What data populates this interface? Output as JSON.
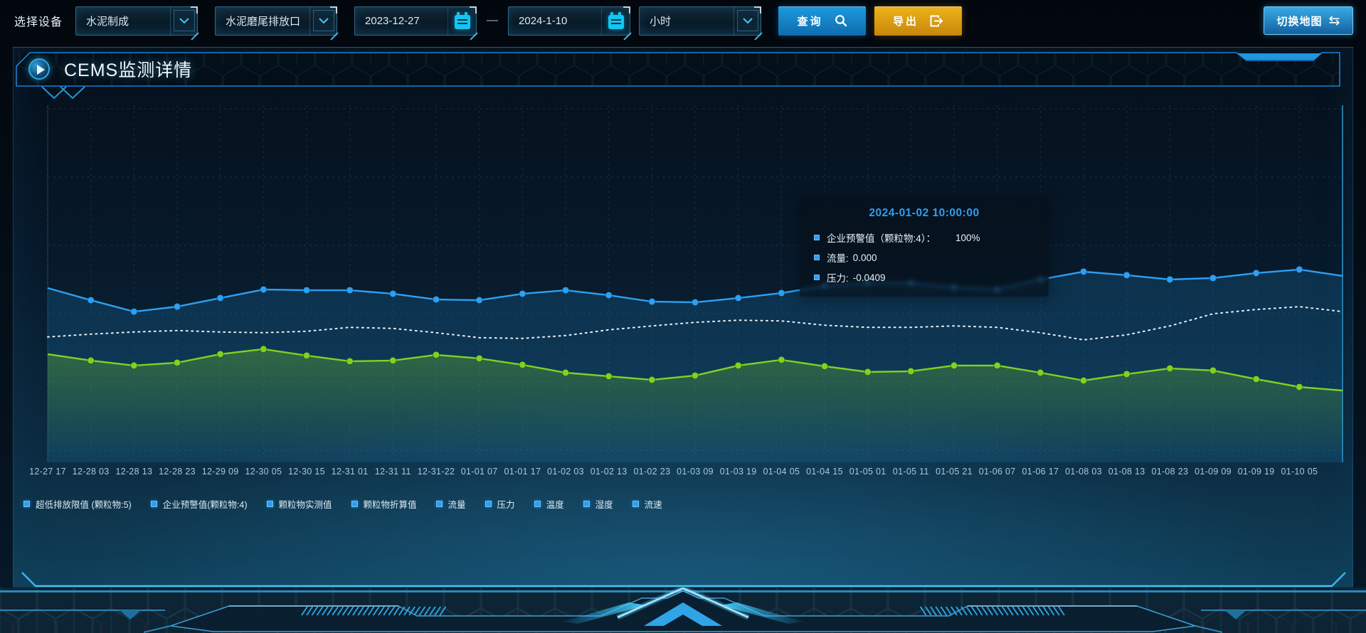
{
  "toolbar": {
    "device_label": "选择设备",
    "device_select": "水泥制成",
    "outlet_select": "水泥磨尾排放口",
    "date_start": "2023-12-27",
    "date_separator": "—",
    "date_end": "2024-1-10",
    "interval_select": "小时",
    "query_button": "查询",
    "export_button": "导出",
    "switch_map_button": "切换地图",
    "icons": [
      "chevron-down-icon",
      "calendar-icon",
      "search-icon",
      "export-icon",
      "swap-arrows-icon"
    ]
  },
  "panel": {
    "title": "CEMS监测详情",
    "title_icon": "play-icon"
  },
  "tooltip": {
    "title": "2024-01-02 10:00:00",
    "rows": [
      {
        "label": "企业预警值（颗粒物:4）：",
        "value": "100%"
      },
      {
        "label": "流量:",
        "value": "0.000"
      },
      {
        "label": "压力:",
        "value": "-0.0409"
      }
    ]
  },
  "legend": [
    "超低排放限值 (颗粒物:5)",
    "企业预警值(颗粒物:4)",
    "颗粒物实测值",
    "颗粒物折算值",
    "流量",
    "压力",
    "温度",
    "湿度",
    "流速"
  ],
  "chart_data": {
    "type": "line",
    "x": [
      "12-27 17",
      "12-28 03",
      "12-28 13",
      "12-28 23",
      "12-29 09",
      "12-30 05",
      "12-30 15",
      "12-31 01",
      "12-31 11",
      "12-31-22",
      "01-01 07",
      "01-01 17",
      "01-02 03",
      "01-02 13",
      "01-02 23",
      "01-03 09",
      "01-03 19",
      "01-04 05",
      "01-04 15",
      "01-05 01",
      "01-05 11",
      "01-05 21",
      "01-06 07",
      "01-06 17",
      "01-08 03",
      "01-08 13",
      "01-08 23",
      "01-09 09",
      "01-09 19",
      "01-10 05"
    ],
    "note": "y axis hidden; values estimated on 0-100 scale from pixel positions; each series carries one extra unlabeled point at the right plot edge",
    "ylim": [
      0,
      100
    ],
    "y_axis_visible": false,
    "grid": true,
    "legend_position": "bottom",
    "series": [
      {
        "name": "blue-line",
        "color": "#2da0f2",
        "style": "solid",
        "symbols": true,
        "area": "solid",
        "area_color": "rgba(26,106,160,0.28)",
        "values": [
          48.8,
          45.4,
          42.2,
          43.6,
          46.0,
          48.4,
          48.2,
          48.2,
          47.2,
          45.6,
          45.4,
          47.2,
          48.2,
          46.8,
          45.0,
          44.8,
          46.0,
          47.4,
          49.4,
          50.2,
          50.2,
          49.0,
          48.4,
          51.2,
          53.4,
          52.4,
          51.2,
          51.6,
          53.0,
          54.0,
          52.2
        ]
      },
      {
        "name": "white-dotted-line",
        "color": "#e9f2f8",
        "style": "dotted",
        "symbols": false,
        "area": null,
        "values": [
          35.1,
          35.9,
          36.5,
          36.9,
          36.5,
          36.3,
          36.7,
          37.8,
          37.5,
          36.3,
          34.9,
          34.7,
          35.5,
          37.1,
          38.2,
          39.2,
          39.8,
          39.6,
          38.4,
          37.8,
          37.8,
          38.2,
          37.8,
          36.3,
          34.3,
          35.7,
          38.2,
          41.6,
          42.8,
          43.6,
          42.2
        ]
      },
      {
        "name": "green-line",
        "color": "#7ed321",
        "style": "solid",
        "symbols": true,
        "area": "fade",
        "area_color": "#76c828",
        "values": [
          30.3,
          28.5,
          27.1,
          27.9,
          30.3,
          31.7,
          29.9,
          28.3,
          28.5,
          30.1,
          29.1,
          27.3,
          25.1,
          24.1,
          23.1,
          24.3,
          27.1,
          28.7,
          26.9,
          25.3,
          25.5,
          27.1,
          27.1,
          25.1,
          22.9,
          24.7,
          26.3,
          25.7,
          23.3,
          21.1,
          20.1
        ]
      }
    ]
  },
  "colors": {
    "accent_blue": "#2da0f2",
    "accent_green": "#7ed321",
    "accent_cyan": "#13c6f2",
    "button_query": "#1489d2",
    "button_export": "#d9980f",
    "panel_border": "#1d7fd0",
    "grid_line": "#7db9d7",
    "x_label": "#a9c8da"
  }
}
